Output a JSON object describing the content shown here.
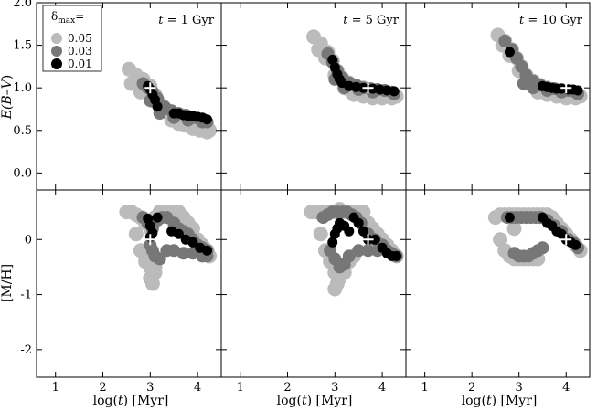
{
  "figure": {
    "xlabel_prefix": "log(",
    "xlabel_var": "t",
    "xlabel_suffix": ") [Myr]",
    "ylabel_top_prefix": "E",
    "ylabel_top_mid": "(B–V",
    "ylabel_top_suffix": ")",
    "ylabel_bottom": "[M/H]",
    "panel_titles": [
      {
        "var": "t",
        "rest": " = 1 Gyr"
      },
      {
        "var": "t",
        "rest": " = 5 Gyr"
      },
      {
        "var": "t",
        "rest": " = 10 Gyr"
      }
    ],
    "legend": {
      "title_symbol": "δ",
      "title_sub": "max",
      "title_suffix": "=",
      "entries": [
        "0.05",
        "0.03",
        "0.01"
      ]
    }
  },
  "chart_data": {
    "type": "scatter",
    "xlim": [
      0.6,
      4.5
    ],
    "xticks": [
      1,
      2,
      3,
      4
    ],
    "top_ylim": [
      -0.2,
      2.0
    ],
    "top_yticks": [
      0.0,
      0.5,
      1.0,
      1.5,
      2.0
    ],
    "bottom_ylim": [
      -2.5,
      0.9
    ],
    "bottom_yticks": [
      -2,
      -1,
      0
    ],
    "levels": [
      {
        "delta_max": "0.05",
        "color": "#bbbbbb"
      },
      {
        "delta_max": "0.03",
        "color": "#777777"
      },
      {
        "delta_max": "0.01",
        "color": "#000000"
      }
    ],
    "panels": [
      {
        "true_point": {
          "log_t": 3.0,
          "E_BV": 1.0,
          "MH": 0.0
        },
        "top": [
          {
            "level": "0.05",
            "x": [
              2.55,
              2.7,
              2.85,
              3.0,
              3.1,
              3.2,
              3.35,
              3.5,
              3.65,
              3.8,
              3.95,
              4.1,
              4.2,
              4.25,
              2.6,
              2.8,
              3.05,
              3.25,
              3.45,
              3.6,
              3.75,
              3.9,
              4.05,
              4.2
            ],
            "y": [
              1.22,
              1.15,
              1.1,
              1.02,
              0.92,
              0.82,
              0.74,
              0.7,
              0.66,
              0.63,
              0.6,
              0.57,
              0.55,
              0.5,
              1.05,
              0.95,
              0.85,
              0.72,
              0.62,
              0.58,
              0.56,
              0.52,
              0.5,
              0.48
            ]
          },
          {
            "level": "0.03",
            "x": [
              2.85,
              2.95,
              3.05,
              3.15,
              3.3,
              3.45,
              3.6,
              3.75,
              3.9,
              4.05,
              4.15,
              4.2,
              3.0,
              3.2,
              3.5,
              3.8,
              4.1
            ],
            "y": [
              1.05,
              1.0,
              0.95,
              0.88,
              0.78,
              0.73,
              0.7,
              0.68,
              0.65,
              0.63,
              0.62,
              0.6,
              0.85,
              0.7,
              0.65,
              0.62,
              0.6
            ]
          },
          {
            "level": "0.01",
            "x": [
              2.95,
              3.0,
              3.05,
              3.1,
              3.15,
              3.5,
              3.6,
              3.7,
              3.8,
              3.9,
              4.0,
              4.1,
              4.2
            ],
            "y": [
              1.02,
              0.98,
              0.92,
              0.86,
              0.78,
              0.7,
              0.7,
              0.68,
              0.67,
              0.67,
              0.66,
              0.65,
              0.63
            ]
          }
        ],
        "bottom": [
          {
            "level": "0.05",
            "x": [
              2.5,
              2.6,
              2.7,
              2.8,
              2.9,
              3.0,
              3.1,
              3.2,
              3.3,
              3.4,
              3.5,
              3.6,
              3.7,
              3.8,
              3.9,
              4.0,
              4.1,
              4.2,
              4.25,
              2.7,
              2.8,
              2.9,
              3.0,
              3.1,
              3.0,
              3.05,
              3.1,
              2.95
            ],
            "y": [
              0.5,
              0.5,
              0.45,
              0.4,
              0.3,
              0.2,
              0.4,
              0.5,
              0.5,
              0.5,
              0.5,
              0.5,
              0.4,
              0.3,
              0.2,
              0.0,
              -0.1,
              -0.2,
              -0.3,
              0.1,
              -0.2,
              -0.4,
              -0.5,
              -0.6,
              -0.7,
              -0.8,
              -0.5,
              -0.3
            ]
          },
          {
            "level": "0.03",
            "x": [
              2.85,
              2.95,
              3.05,
              3.15,
              3.25,
              3.35,
              3.5,
              3.6,
              3.7,
              3.8,
              3.9,
              4.0,
              4.1,
              4.2,
              3.0,
              3.05,
              3.1,
              3.2,
              3.35,
              3.5,
              3.7,
              3.9,
              4.1,
              4.2
            ],
            "y": [
              0.4,
              0.3,
              0.2,
              0.35,
              0.4,
              0.4,
              0.3,
              0.2,
              0.15,
              0.1,
              0.0,
              -0.1,
              -0.15,
              -0.2,
              -0.1,
              -0.2,
              -0.3,
              -0.35,
              -0.2,
              -0.2,
              -0.25,
              -0.25,
              -0.3,
              -0.3
            ]
          },
          {
            "level": "0.01",
            "x": [
              2.95,
              3.0,
              3.05,
              3.0,
              3.15,
              3.45,
              3.6,
              3.75,
              3.9,
              4.05,
              4.2
            ],
            "y": [
              0.38,
              0.25,
              0.12,
              0.05,
              0.4,
              0.15,
              0.1,
              0.0,
              -0.05,
              -0.15,
              -0.2
            ]
          }
        ]
      },
      {
        "true_point": {
          "log_t": 3.7,
          "E_BV": 1.0,
          "MH": 0.0
        },
        "top": [
          {
            "level": "0.05",
            "x": [
              2.55,
              2.7,
              2.85,
              2.95,
              3.05,
              3.15,
              3.3,
              3.45,
              3.6,
              3.75,
              3.9,
              4.05,
              4.2,
              4.3,
              2.65,
              2.8,
              3.0,
              3.2,
              3.4,
              3.6,
              3.8,
              4.0,
              4.2
            ],
            "y": [
              1.6,
              1.52,
              1.42,
              1.32,
              1.2,
              1.12,
              1.06,
              1.02,
              1.0,
              0.98,
              0.96,
              0.95,
              0.93,
              0.9,
              1.45,
              1.35,
              1.15,
              1.0,
              0.92,
              0.9,
              0.88,
              0.88,
              0.88
            ]
          },
          {
            "level": "0.03",
            "x": [
              2.85,
              2.95,
              3.05,
              3.15,
              3.3,
              3.45,
              3.6,
              3.75,
              3.9,
              4.05,
              4.2,
              4.25,
              3.0,
              3.2,
              3.5,
              3.8
            ],
            "y": [
              1.4,
              1.3,
              1.2,
              1.12,
              1.06,
              1.03,
              1.0,
              0.99,
              0.98,
              0.97,
              0.95,
              0.93,
              1.1,
              1.0,
              0.98,
              0.95
            ]
          },
          {
            "level": "0.01",
            "x": [
              2.95,
              3.0,
              3.05,
              3.1,
              3.15,
              3.3,
              3.45,
              3.6,
              3.8,
              3.95,
              4.1,
              4.25
            ],
            "y": [
              1.33,
              1.24,
              1.16,
              1.1,
              1.06,
              1.02,
              1.01,
              1.0,
              0.99,
              0.98,
              0.97,
              0.96
            ]
          }
        ],
        "bottom": [
          {
            "level": "0.05",
            "x": [
              2.5,
              2.6,
              2.7,
              2.8,
              2.9,
              3.0,
              3.1,
              3.2,
              3.3,
              3.4,
              3.5,
              3.6,
              3.7,
              3.8,
              3.9,
              4.0,
              4.1,
              4.2,
              4.3,
              2.7,
              2.8,
              2.9,
              3.0,
              3.1,
              3.2,
              3.3,
              3.4,
              3.0,
              3.05
            ],
            "y": [
              0.5,
              0.5,
              0.5,
              0.5,
              0.5,
              0.5,
              0.55,
              0.5,
              0.5,
              0.5,
              0.5,
              0.5,
              0.3,
              0.2,
              0.1,
              0.0,
              -0.1,
              -0.2,
              -0.3,
              0.1,
              -0.2,
              -0.4,
              -0.6,
              -0.7,
              -0.6,
              -0.4,
              -0.3,
              -0.9,
              -0.8
            ]
          },
          {
            "level": "0.03",
            "x": [
              2.75,
              2.85,
              2.95,
              3.05,
              3.15,
              3.25,
              3.35,
              3.45,
              3.55,
              3.7,
              3.85,
              4.0,
              4.1,
              4.2,
              4.3,
              2.9,
              3.0,
              3.1,
              3.2,
              3.3,
              3.5,
              3.7,
              3.9
            ],
            "y": [
              0.4,
              0.45,
              0.5,
              0.5,
              0.5,
              0.5,
              0.45,
              0.4,
              0.3,
              0.1,
              0.0,
              -0.1,
              -0.2,
              -0.25,
              -0.3,
              -0.2,
              -0.35,
              -0.5,
              -0.45,
              -0.3,
              -0.2,
              -0.2,
              -0.2
            ]
          },
          {
            "level": "0.01",
            "x": [
              2.95,
              3.0,
              3.05,
              3.1,
              3.2,
              3.3,
              3.4,
              3.5,
              3.6,
              3.7,
              3.85,
              4.0,
              4.1,
              4.2,
              4.3
            ],
            "y": [
              -0.05,
              0.1,
              0.2,
              0.3,
              0.25,
              0.15,
              0.4,
              0.3,
              0.15,
              0.0,
              0.0,
              -0.15,
              -0.25,
              -0.3,
              -0.3
            ]
          }
        ]
      },
      {
        "true_point": {
          "log_t": 4.0,
          "E_BV": 1.0,
          "MH": 0.0
        },
        "top": [
          {
            "level": "0.05",
            "x": [
              2.55,
              2.7,
              2.85,
              2.95,
              3.05,
              3.15,
              3.3,
              3.45,
              3.6,
              3.75,
              3.9,
              4.05,
              4.2,
              4.3,
              2.65,
              2.8,
              3.0,
              3.2,
              3.4,
              3.6,
              3.8,
              4.0,
              4.2
            ],
            "y": [
              1.62,
              1.55,
              1.45,
              1.35,
              1.25,
              1.15,
              1.08,
              1.03,
              1.0,
              0.98,
              0.96,
              0.95,
              0.93,
              0.9,
              1.5,
              1.38,
              1.2,
              1.05,
              0.95,
              0.92,
              0.9,
              0.88,
              0.88
            ]
          },
          {
            "level": "0.03",
            "x": [
              2.7,
              2.85,
              2.95,
              3.05,
              3.15,
              3.3,
              3.45,
              3.6,
              3.75,
              3.9,
              4.05,
              4.2,
              4.25,
              3.1,
              3.3,
              3.6,
              3.9
            ],
            "y": [
              1.55,
              1.45,
              1.35,
              1.25,
              1.15,
              1.08,
              1.03,
              1.0,
              0.99,
              0.98,
              0.97,
              0.95,
              0.93,
              1.05,
              1.0,
              0.97,
              0.95
            ]
          },
          {
            "level": "0.01",
            "x": [
              2.8,
              3.5,
              3.6,
              3.7,
              3.8,
              3.9,
              4.05,
              4.15,
              4.25
            ],
            "y": [
              1.42,
              1.02,
              1.01,
              1.0,
              0.99,
              0.99,
              0.98,
              0.98,
              0.97
            ]
          }
        ],
        "bottom": [
          {
            "level": "0.05",
            "x": [
              2.5,
              2.6,
              2.7,
              2.8,
              2.9,
              3.0,
              3.1,
              3.2,
              3.3,
              3.4,
              3.5,
              3.6,
              3.7,
              3.8,
              3.9,
              4.0,
              4.1,
              4.2,
              4.3,
              2.6,
              2.7,
              2.8,
              2.9,
              3.0,
              3.1,
              3.2,
              3.3,
              3.4,
              2.9
            ],
            "y": [
              0.4,
              0.45,
              0.45,
              0.45,
              0.45,
              0.45,
              0.45,
              0.45,
              0.45,
              0.45,
              0.45,
              0.45,
              0.4,
              0.3,
              0.2,
              0.1,
              0.0,
              -0.1,
              -0.2,
              0.0,
              -0.2,
              -0.3,
              -0.35,
              -0.35,
              -0.35,
              -0.35,
              -0.35,
              -0.35,
              0.2
            ]
          },
          {
            "level": "0.03",
            "x": [
              2.75,
              2.85,
              2.95,
              3.05,
              3.15,
              3.25,
              3.35,
              3.45,
              3.6,
              3.75,
              3.9,
              4.05,
              4.15,
              4.25,
              2.9,
              3.0,
              3.1,
              3.2,
              3.3,
              3.4,
              3.5
            ],
            "y": [
              0.4,
              0.4,
              0.4,
              0.4,
              0.4,
              0.4,
              0.4,
              0.4,
              0.35,
              0.25,
              0.15,
              0.0,
              -0.05,
              -0.15,
              -0.25,
              -0.3,
              -0.3,
              -0.3,
              -0.25,
              -0.2,
              -0.15
            ]
          },
          {
            "level": "0.01",
            "x": [
              2.8,
              3.5,
              3.6,
              3.7,
              3.8,
              3.9,
              4.0,
              4.1,
              4.2
            ],
            "y": [
              0.4,
              0.4,
              0.3,
              0.25,
              0.15,
              0.1,
              0.0,
              -0.05,
              -0.1
            ]
          }
        ]
      }
    ]
  }
}
